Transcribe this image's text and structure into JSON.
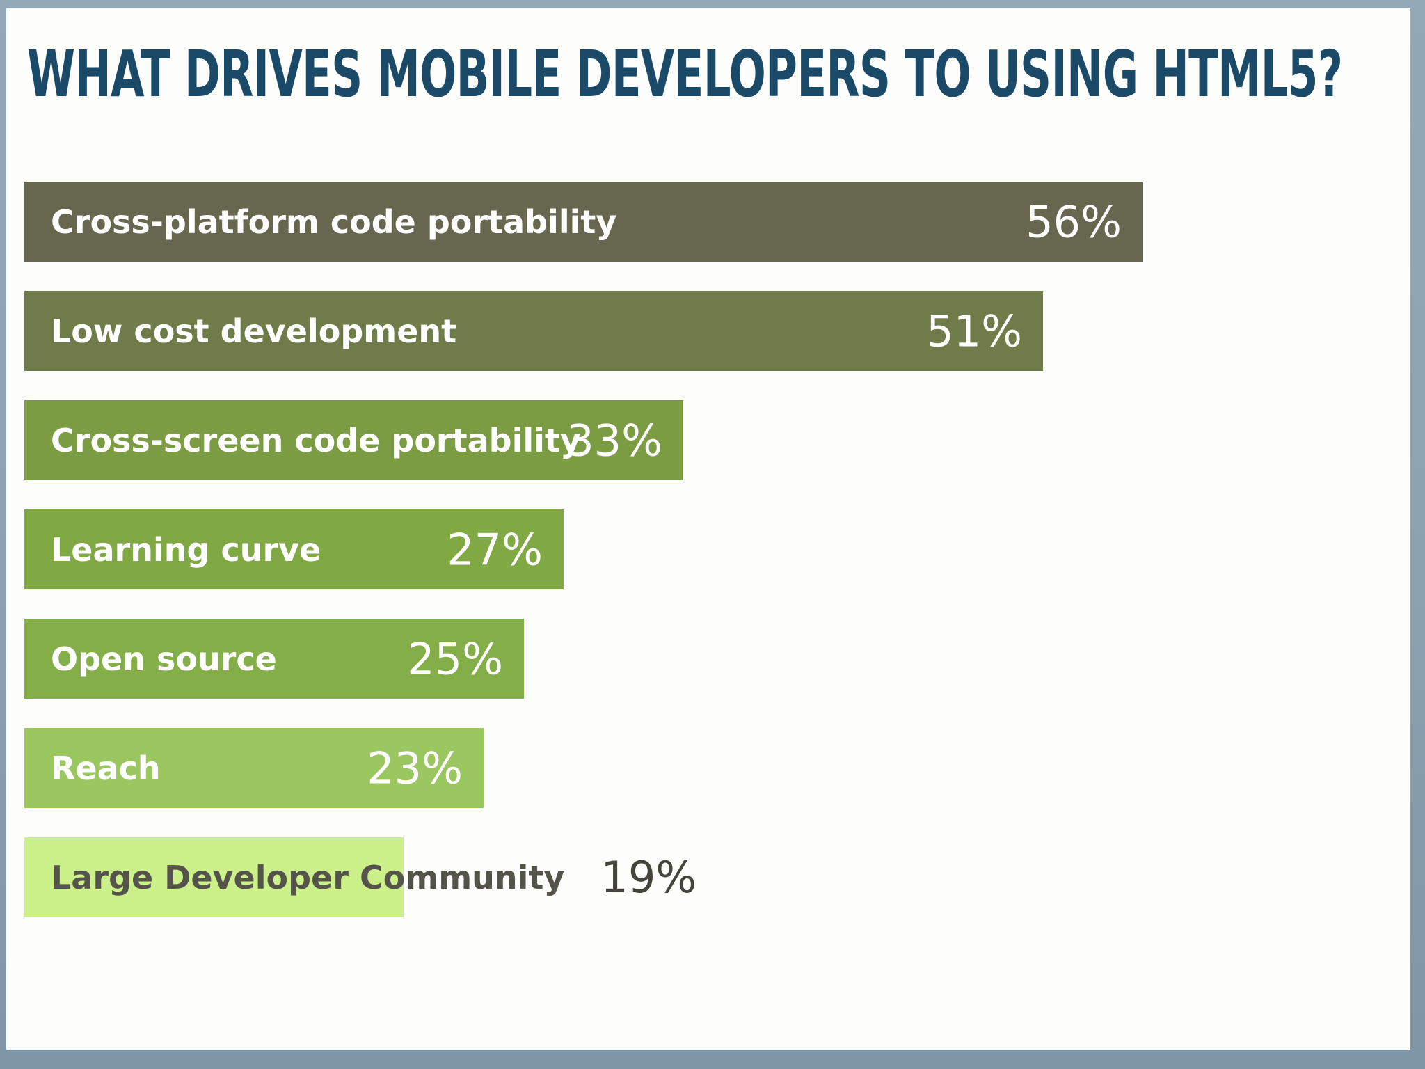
{
  "page": {
    "title": "WHAT DRIVES MOBILE DEVELOPERS TO USING HTML5?"
  },
  "chart_data": {
    "type": "bar",
    "orientation": "horizontal",
    "title": "WHAT DRIVES MOBILE DEVELOPERS TO USING HTML5?",
    "categories": [
      "Cross-platform code portability",
      "Low cost development",
      "Cross-screen code portability",
      "Learning curve",
      "Open source",
      "Reach",
      "Large Developer Community"
    ],
    "values": [
      56,
      51,
      33,
      27,
      25,
      23,
      19
    ],
    "value_labels": [
      "56%",
      "51%",
      "33%",
      "27%",
      "25%",
      "23%",
      "19%"
    ],
    "unit": "%",
    "xlim": [
      0,
      60
    ],
    "grid": false,
    "legend": false,
    "bar_colors": [
      "#67664f",
      "#6f7c4a",
      "#7b9c42",
      "#80a843",
      "#84ae48",
      "#9ac75f",
      "#ccf18b"
    ],
    "text_colors": [
      "#ffffff",
      "#ffffff",
      "#ffffff",
      "#ffffff",
      "#ffffff",
      "#ffffff",
      "#55544a"
    ],
    "value_placement": [
      "inside",
      "inside",
      "inside",
      "inside",
      "inside",
      "inside",
      "outside"
    ],
    "outside_value_color": "#45443c",
    "title_color": "#1a4a68",
    "frame_color": "#8ba2b1",
    "background_color": "#fdfdfc"
  }
}
